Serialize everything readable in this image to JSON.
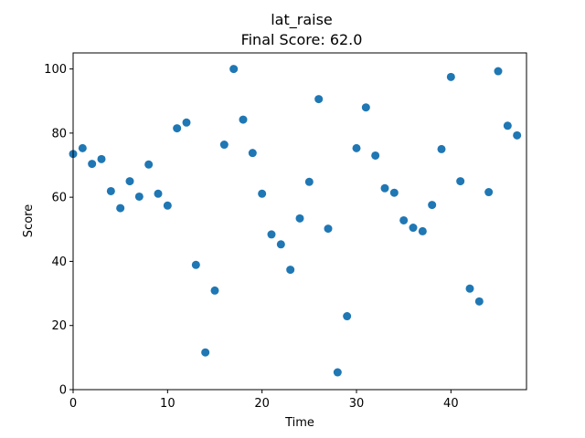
{
  "chart_data": {
    "type": "scatter",
    "title": "lat_raise",
    "subtitle": "Final Score: 62.0",
    "xlabel": "Time",
    "ylabel": "Score",
    "xlim": [
      0,
      48
    ],
    "ylim": [
      0,
      105
    ],
    "xticks": [
      0,
      10,
      20,
      30,
      40
    ],
    "yticks": [
      0,
      20,
      40,
      60,
      80,
      100
    ],
    "grid": false,
    "marker_color": "#1f77b4",
    "points": [
      {
        "x": 0,
        "y": 73.5
      },
      {
        "x": 1,
        "y": 75.3
      },
      {
        "x": 2,
        "y": 70.4
      },
      {
        "x": 3,
        "y": 71.9
      },
      {
        "x": 4,
        "y": 61.9
      },
      {
        "x": 5,
        "y": 56.6
      },
      {
        "x": 6,
        "y": 65.0
      },
      {
        "x": 7,
        "y": 60.2
      },
      {
        "x": 8,
        "y": 70.2
      },
      {
        "x": 9,
        "y": 61.1
      },
      {
        "x": 10,
        "y": 57.4
      },
      {
        "x": 11,
        "y": 81.5
      },
      {
        "x": 12,
        "y": 83.3
      },
      {
        "x": 13,
        "y": 38.9
      },
      {
        "x": 14,
        "y": 11.6
      },
      {
        "x": 15,
        "y": 30.9
      },
      {
        "x": 16,
        "y": 76.4
      },
      {
        "x": 17,
        "y": 100.0
      },
      {
        "x": 18,
        "y": 84.2
      },
      {
        "x": 19,
        "y": 73.8
      },
      {
        "x": 20,
        "y": 61.1
      },
      {
        "x": 21,
        "y": 48.4
      },
      {
        "x": 22,
        "y": 45.3
      },
      {
        "x": 23,
        "y": 37.4
      },
      {
        "x": 24,
        "y": 53.4
      },
      {
        "x": 25,
        "y": 64.8
      },
      {
        "x": 26,
        "y": 90.6
      },
      {
        "x": 27,
        "y": 50.2
      },
      {
        "x": 28,
        "y": 5.4
      },
      {
        "x": 29,
        "y": 22.9
      },
      {
        "x": 30,
        "y": 75.3
      },
      {
        "x": 31,
        "y": 88.0
      },
      {
        "x": 32,
        "y": 73.0
      },
      {
        "x": 33,
        "y": 62.8
      },
      {
        "x": 34,
        "y": 61.4
      },
      {
        "x": 35,
        "y": 52.8
      },
      {
        "x": 36,
        "y": 50.5
      },
      {
        "x": 37,
        "y": 49.4
      },
      {
        "x": 38,
        "y": 57.6
      },
      {
        "x": 39,
        "y": 75.0
      },
      {
        "x": 40,
        "y": 97.5
      },
      {
        "x": 41,
        "y": 65.0
      },
      {
        "x": 42,
        "y": 31.5
      },
      {
        "x": 43,
        "y": 27.5
      },
      {
        "x": 44,
        "y": 61.6
      },
      {
        "x": 45,
        "y": 99.3
      },
      {
        "x": 46,
        "y": 82.3
      },
      {
        "x": 47,
        "y": 79.3
      }
    ]
  }
}
